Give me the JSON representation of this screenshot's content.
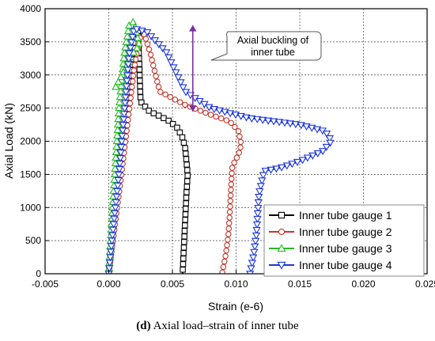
{
  "chart_data": {
    "type": "line",
    "xlabel": "Strain (e-6)",
    "ylabel": "Axial Load (kN)",
    "xlim": [
      -0.005,
      0.025
    ],
    "ylim": [
      0,
      4000
    ],
    "x_ticks": [
      "-0.005",
      "0.000",
      "0.005",
      "0.010",
      "0.015",
      "0.020",
      "0.025"
    ],
    "y_ticks": [
      "0",
      "500",
      "1000",
      "1500",
      "2000",
      "2500",
      "3000",
      "3500",
      "4000"
    ],
    "grid": true,
    "legend_position": "bottom-right",
    "annotation": {
      "line1": "Axial buckling of",
      "line2": "inner tube",
      "arrow_x": 0.0066,
      "arrow_y_range": [
        2450,
        3750
      ]
    },
    "series": [
      {
        "name": "Inner tube gauge 1",
        "color": "#000000",
        "marker": "square",
        "x": [
          0.0,
          0.0003,
          0.0008,
          0.0013,
          0.0018,
          0.0021,
          0.0023,
          0.0025,
          0.0032,
          0.004,
          0.0048,
          0.0054,
          0.0058,
          0.006,
          0.0061,
          0.0062,
          0.0061,
          0.006,
          0.0059,
          0.0058
        ],
        "y": [
          0,
          600,
          1400,
          2200,
          3000,
          3500,
          3700,
          2600,
          2450,
          2380,
          2300,
          2200,
          2050,
          1900,
          1700,
          1500,
          1200,
          800,
          400,
          0
        ]
      },
      {
        "name": "Inner tube gauge 2",
        "color": "#c0392b",
        "marker": "circle",
        "x": [
          0.0,
          0.0004,
          0.001,
          0.0015,
          0.002,
          0.0024,
          0.0028,
          0.0033,
          0.004,
          0.006,
          0.008,
          0.0095,
          0.0102,
          0.0104,
          0.0102,
          0.0099,
          0.0097,
          0.0096,
          0.0095,
          0.0094,
          0.0092,
          0.0089
        ],
        "y": [
          0,
          600,
          1500,
          2300,
          3100,
          3550,
          3620,
          3300,
          2750,
          2550,
          2400,
          2300,
          2150,
          1950,
          1800,
          1700,
          1600,
          1300,
          900,
          600,
          300,
          0
        ]
      },
      {
        "name": "Inner tube gauge 3",
        "color": "#22bb22",
        "marker": "triangle-up",
        "x": [
          0.0,
          0.0002,
          0.0005,
          0.0008,
          0.0012,
          0.0016,
          0.0019,
          0.0021,
          0.0024,
          0.0018,
          0.0013,
          0.0009,
          0.0005
        ],
        "y": [
          0,
          700,
          1600,
          2500,
          3300,
          3750,
          3800,
          3700,
          3450,
          3300,
          3100,
          2950,
          2800
        ]
      },
      {
        "name": "Inner tube gauge 4",
        "color": "#1a35e0",
        "marker": "triangle-down",
        "x": [
          0.0,
          0.0003,
          0.0008,
          0.0012,
          0.0016,
          0.002,
          0.003,
          0.0045,
          0.006,
          0.008,
          0.011,
          0.015,
          0.017,
          0.0175,
          0.0168,
          0.015,
          0.0135,
          0.0122,
          0.0118,
          0.0116,
          0.0114,
          0.0111
        ],
        "y": [
          0,
          600,
          1500,
          2400,
          3300,
          3700,
          3650,
          3350,
          2750,
          2500,
          2350,
          2250,
          2150,
          2000,
          1850,
          1700,
          1600,
          1550,
          1200,
          600,
          300,
          0
        ]
      }
    ]
  },
  "caption": {
    "label": "(d)",
    "text": " Axial load–strain of inner tube"
  }
}
